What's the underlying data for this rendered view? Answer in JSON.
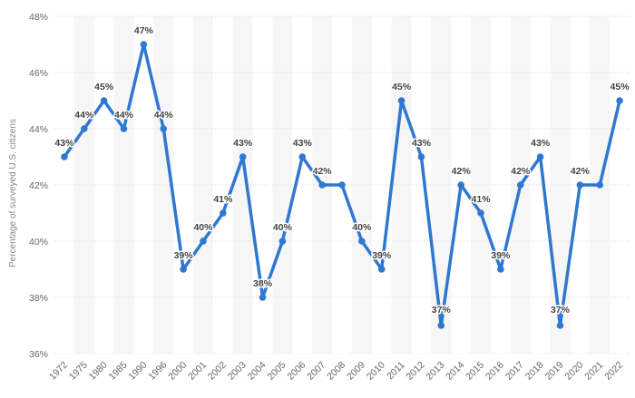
{
  "chart_data": {
    "type": "line",
    "title": "",
    "xlabel": "",
    "ylabel": "Percentage of surveyed U.S. citizens",
    "ylim": [
      36,
      48
    ],
    "yticks": [
      36,
      38,
      40,
      42,
      44,
      46,
      48
    ],
    "ytick_suffix": "%",
    "grid": true,
    "line_color": "#2f78d2",
    "categories": [
      "1972",
      "1975",
      "1980",
      "1985",
      "1990",
      "1996",
      "2000",
      "2001",
      "2002",
      "2003",
      "2004",
      "2005",
      "2006",
      "2007",
      "2008",
      "2009",
      "2010",
      "2011",
      "2012",
      "2013",
      "2014",
      "2015",
      "2016",
      "2017",
      "2018",
      "2019",
      "2020",
      "2021",
      "2022"
    ],
    "values": [
      43,
      44,
      45,
      44,
      47,
      44,
      39,
      40,
      41,
      43,
      38,
      40,
      43,
      42,
      42,
      40,
      39,
      45,
      43,
      37,
      42,
      41,
      39,
      42,
      43,
      37,
      42,
      42,
      45
    ],
    "data_labels": [
      "43%",
      "44%",
      "45%",
      "44%",
      "47%",
      "44%",
      "39%",
      "40%",
      "41%",
      "43%",
      "38%",
      "40%",
      "43%",
      "42%",
      "",
      "40%",
      "39%",
      "45%",
      "43%",
      "37%",
      "42%",
      "41%",
      "39%",
      "42%",
      "43%",
      "37%",
      "42%",
      "",
      "45%"
    ]
  }
}
